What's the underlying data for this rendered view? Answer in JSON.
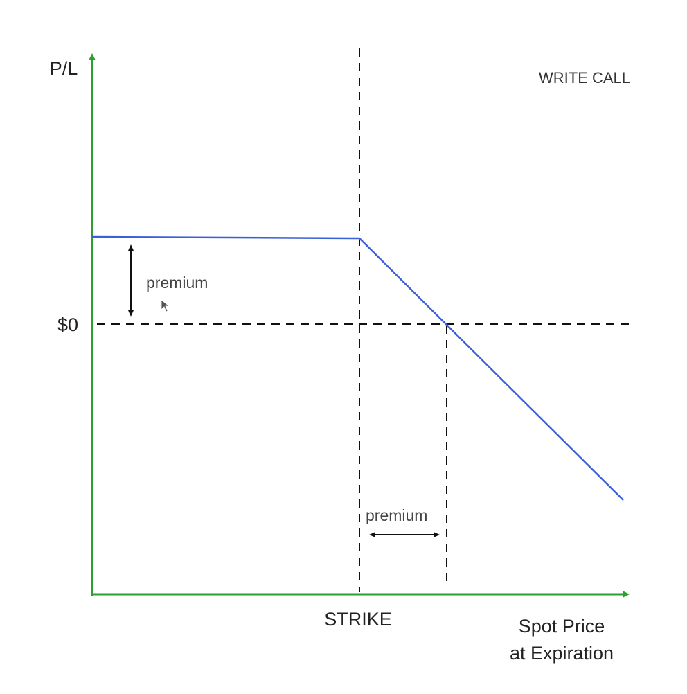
{
  "title": "WRITE CALL",
  "y_axis_label": "P/L",
  "zero_label": "$0",
  "x_axis_label_line1": "Spot Price",
  "x_axis_label_line2": "at Expiration",
  "strike_label": "STRIKE",
  "premium_label_vertical": "premium",
  "premium_label_horizontal": "premium",
  "colors": {
    "axis": "#2e9e2e",
    "payoff_line": "#3a5fd9",
    "guides": "#111111",
    "arrows": "#111111"
  }
}
